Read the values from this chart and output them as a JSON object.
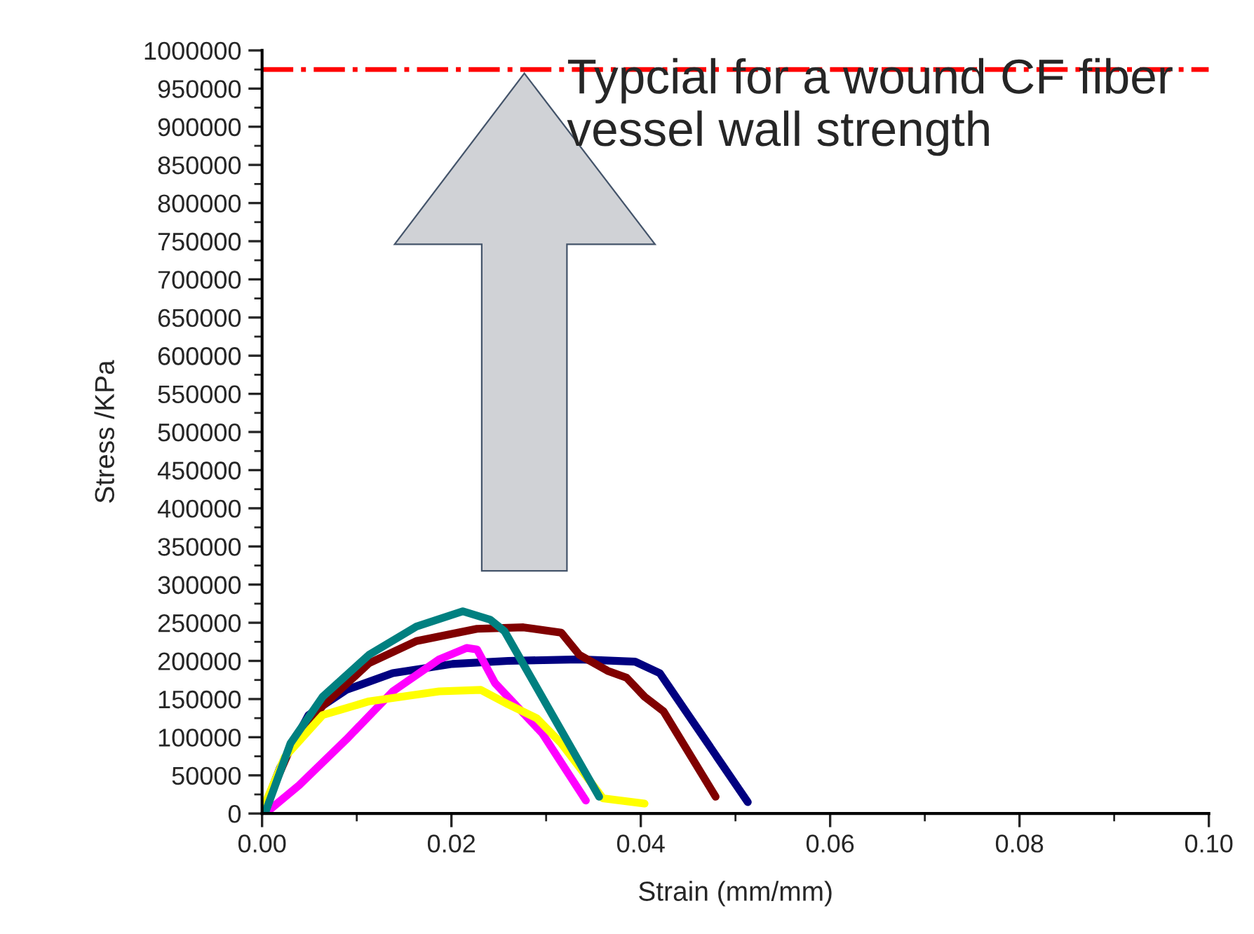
{
  "chart_data": {
    "type": "line",
    "xlabel": "Strain (mm/mm)",
    "ylabel": "Stress /KPa",
    "xlim": [
      0,
      0.1
    ],
    "xticks": [
      {
        "value": 0,
        "label": "0.00"
      },
      {
        "value": 0.01,
        "label": null
      },
      {
        "value": 0.02,
        "label": "0.02"
      },
      {
        "value": 0.03,
        "label": null
      },
      {
        "value": 0.04,
        "label": "0.04"
      },
      {
        "value": 0.05,
        "label": null
      },
      {
        "value": 0.06,
        "label": "0.06"
      },
      {
        "value": 0.07,
        "label": null
      },
      {
        "value": 0.08,
        "label": "0.08"
      },
      {
        "value": 0.09,
        "label": null
      },
      {
        "value": 0.1,
        "label": "0.10"
      }
    ],
    "ylim": [
      0,
      1000000
    ],
    "yticks": [
      0,
      50000,
      100000,
      150000,
      200000,
      250000,
      300000,
      350000,
      400000,
      450000,
      500000,
      550000,
      600000,
      650000,
      700000,
      750000,
      800000,
      850000,
      900000,
      950000,
      1000000
    ],
    "grid": false,
    "legend": false,
    "marker": "none",
    "line_style": "solid",
    "series": [
      {
        "color": "#000080",
        "x": [
          0,
          0.0019,
          0.0049,
          0.0089,
          0.0138,
          0.0201,
          0.026,
          0.0335,
          0.0394,
          0.042,
          0.0513
        ],
        "values": [
          0,
          60000,
          129000,
          162000,
          184000,
          196000,
          200000,
          202000,
          199000,
          184000,
          15000
        ]
      },
      {
        "color": "#800000",
        "x": [
          0,
          0.003,
          0.0064,
          0.0113,
          0.0163,
          0.0227,
          0.0276,
          0.0316,
          0.0335,
          0.0365,
          0.0385,
          0.0404,
          0.0424,
          0.0479
        ],
        "values": [
          0,
          86000,
          141000,
          197000,
          226000,
          242000,
          244000,
          237000,
          208000,
          187000,
          178000,
          153000,
          134000,
          22000
        ]
      },
      {
        "color": "#ff00ff",
        "x": [
          0.0009,
          0.0039,
          0.0089,
          0.0138,
          0.0187,
          0.0216,
          0.0227,
          0.0246,
          0.0296,
          0.0342
        ],
        "values": [
          6000,
          37000,
          97000,
          160000,
          202000,
          217000,
          215000,
          171000,
          105000,
          17000
        ]
      },
      {
        "color": "#ffff00",
        "x": [
          0.0002,
          0.0024,
          0.0064,
          0.0113,
          0.0187,
          0.0231,
          0.026,
          0.029,
          0.0316,
          0.036,
          0.0404
        ],
        "values": [
          9000,
          74000,
          129000,
          147000,
          160000,
          162000,
          143000,
          125000,
          92000,
          20000,
          13000
        ]
      },
      {
        "color": "#008080",
        "x": [
          0.0003,
          0.003,
          0.0064,
          0.0113,
          0.0163,
          0.0212,
          0.0241,
          0.0256,
          0.0356
        ],
        "values": [
          0,
          92000,
          153000,
          208000,
          245000,
          265000,
          254000,
          239000,
          22000
        ]
      }
    ],
    "ref_lines": [
      {
        "axis": "y",
        "value": 975000,
        "label": "Typcial for a wound CF fiber vessel wall strength",
        "color": "#ff0000",
        "line_style": "dashdot"
      }
    ]
  }
}
